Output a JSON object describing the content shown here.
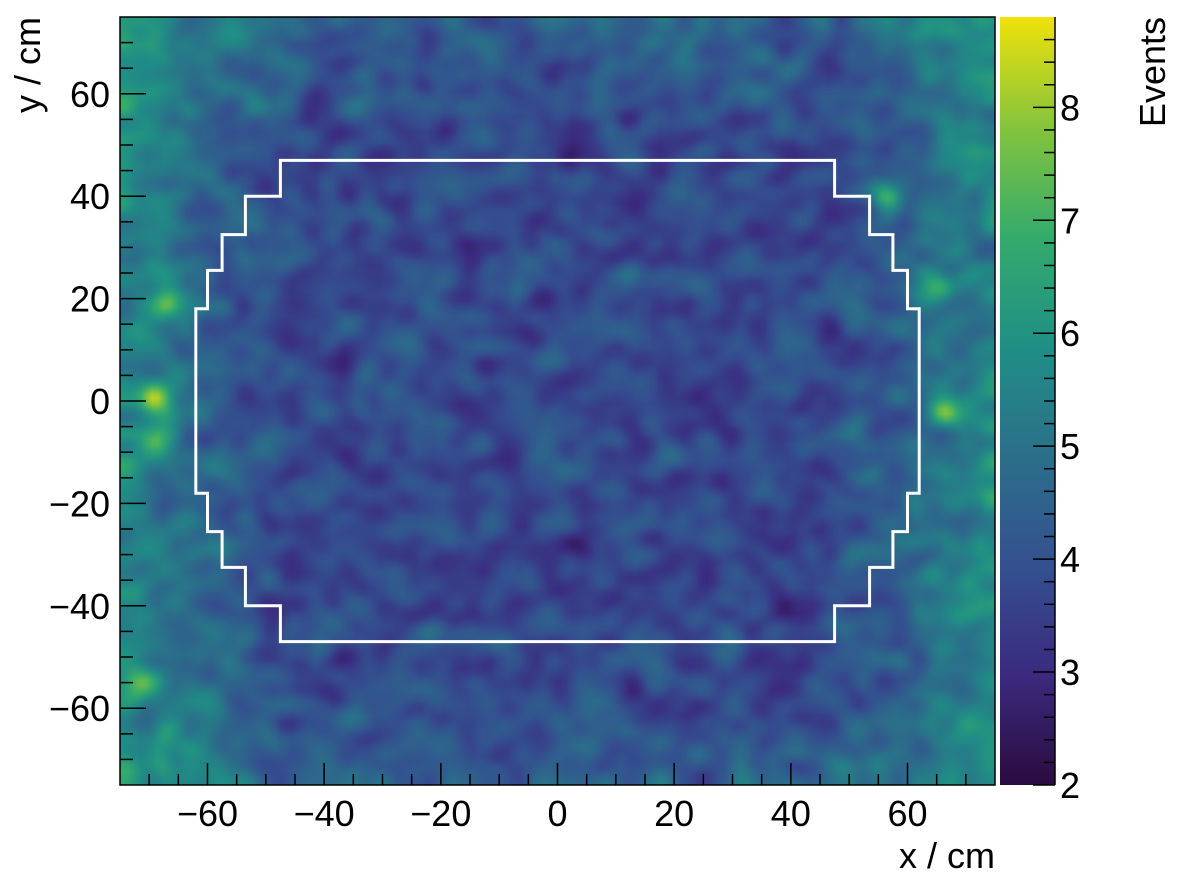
{
  "chart_data": {
    "type": "heatmap",
    "xlabel": "x / cm",
    "ylabel": "y / cm",
    "zlabel": "Events",
    "xlim": [
      -75,
      75
    ],
    "ylim": [
      -75,
      75
    ],
    "zlim": [
      2,
      8.8
    ],
    "x_ticks": [
      -60,
      -40,
      -20,
      0,
      20,
      40,
      60
    ],
    "y_ticks": [
      -60,
      -40,
      -20,
      0,
      20,
      40,
      60
    ],
    "z_ticks": [
      2,
      3,
      4,
      5,
      6,
      7,
      8
    ],
    "x_tick_labels": [
      "−60",
      "−40",
      "−20",
      "0",
      "20",
      "40",
      "60"
    ],
    "y_tick_labels": [
      "−60",
      "−40",
      "−20",
      "0",
      "20",
      "40",
      "60"
    ],
    "z_tick_labels": [
      "2",
      "3",
      "4",
      "5",
      "6",
      "7",
      "8"
    ],
    "colormap": [
      "#2b0b3f",
      "#3b2a7e",
      "#34508f",
      "#2b6f8a",
      "#208f85",
      "#34ab6c",
      "#85c43c",
      "#f0e20a"
    ],
    "grid": false,
    "overview": {
      "center_mean": 3.8,
      "edge_mean": 5.8,
      "hotspots": [
        {
          "x": -69,
          "y": 1,
          "value": 8.7
        },
        {
          "x": -67,
          "y": 19,
          "value": 7.8
        },
        {
          "x": 56,
          "y": 40,
          "value": 8.3
        },
        {
          "x": 67,
          "y": -2,
          "value": 8.0
        },
        {
          "x": 66,
          "y": 22,
          "value": 7.3
        },
        {
          "x": -72,
          "y": -55,
          "value": 7.2
        },
        {
          "x": -68,
          "y": -8,
          "value": 7.0
        }
      ]
    },
    "region_outline": [
      [
        -47.5,
        47
      ],
      [
        47.5,
        47
      ],
      [
        47.5,
        40
      ],
      [
        53.5,
        40
      ],
      [
        53.5,
        32.5
      ],
      [
        57.5,
        32.5
      ],
      [
        57.5,
        25.5
      ],
      [
        60,
        25.5
      ],
      [
        60,
        18
      ],
      [
        62,
        18
      ],
      [
        62,
        -18
      ],
      [
        60,
        -18
      ],
      [
        60,
        -25.5
      ],
      [
        57.5,
        -25.5
      ],
      [
        57.5,
        -32.5
      ],
      [
        53.5,
        -32.5
      ],
      [
        53.5,
        -40
      ],
      [
        47.5,
        -40
      ],
      [
        47.5,
        -47
      ],
      [
        -47.5,
        -47
      ],
      [
        -47.5,
        -40
      ],
      [
        -53.5,
        -40
      ],
      [
        -53.5,
        -32.5
      ],
      [
        -57.5,
        -32.5
      ],
      [
        -57.5,
        -25.5
      ],
      [
        -60,
        -25.5
      ],
      [
        -60,
        -18
      ],
      [
        -62,
        -18
      ],
      [
        -62,
        18
      ],
      [
        -60,
        18
      ],
      [
        -60,
        25.5
      ],
      [
        -57.5,
        25.5
      ],
      [
        -57.5,
        32.5
      ],
      [
        -53.5,
        32.5
      ],
      [
        -53.5,
        40
      ],
      [
        -47.5,
        40
      ],
      [
        -47.5,
        47
      ]
    ]
  }
}
